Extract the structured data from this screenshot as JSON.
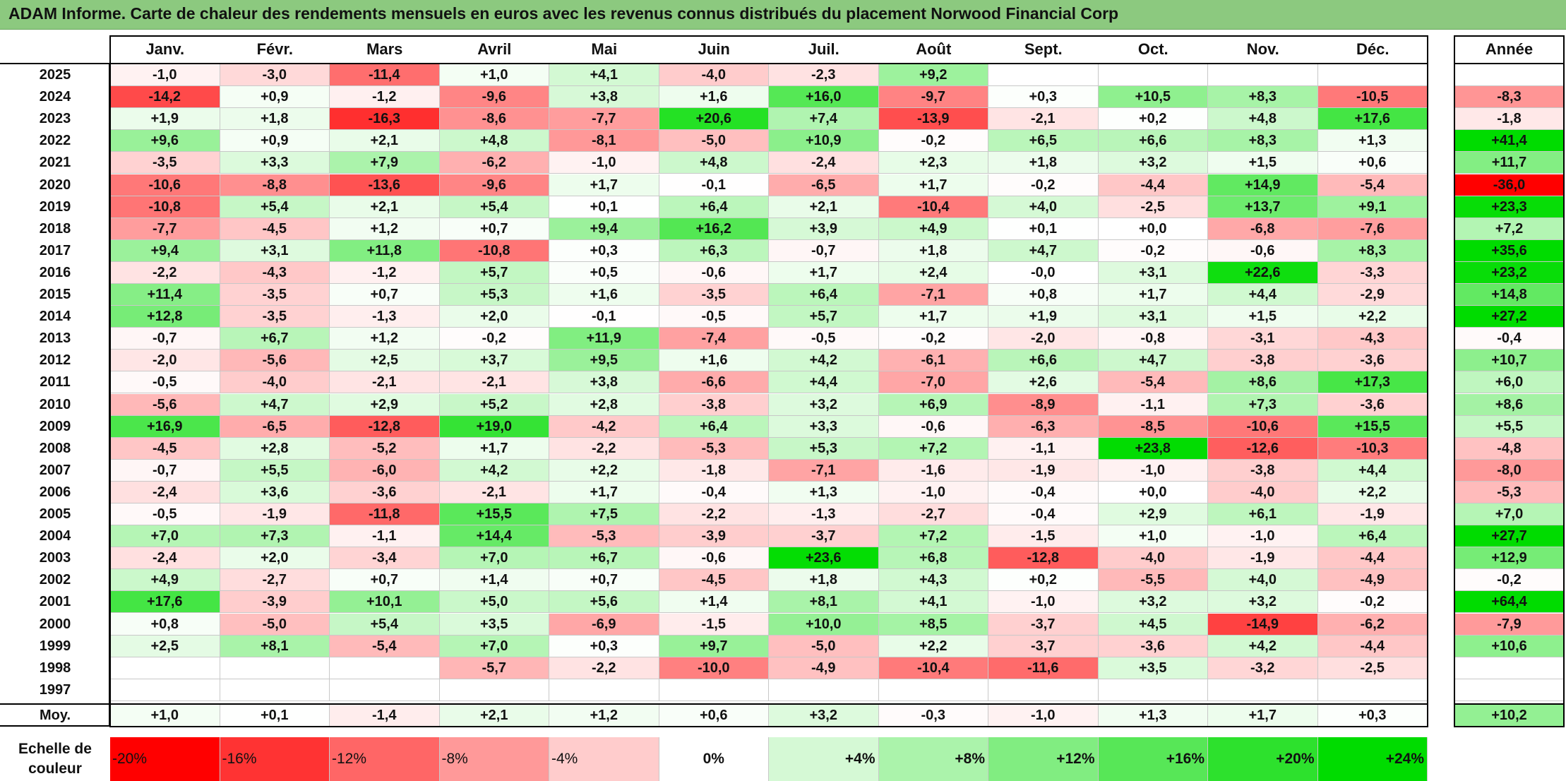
{
  "title": "ADAM Informe. Carte de chaleur des rendements mensuels en euros avec les revenus connus distribués du placement Norwood Financial Corp",
  "chart_data": {
    "type": "heatmap",
    "months": [
      "Janv.",
      "Févr.",
      "Mars",
      "Avril",
      "Mai",
      "Juin",
      "Juil.",
      "Août",
      "Sept.",
      "Oct.",
      "Nov.",
      "Déc."
    ],
    "year_header": "Année",
    "rows": [
      {
        "year": "2025",
        "values": [
          "-1,0",
          "-3,0",
          "-11,4",
          "+1,0",
          "+4,1",
          "-4,0",
          "-2,3",
          "+9,2",
          "",
          "",
          "",
          ""
        ],
        "annual": ""
      },
      {
        "year": "2024",
        "values": [
          "-14,2",
          "+0,9",
          "-1,2",
          "-9,6",
          "+3,8",
          "+1,6",
          "+16,0",
          "-9,7",
          "+0,3",
          "+10,5",
          "+8,3",
          "-10,5"
        ],
        "annual": "-8,3"
      },
      {
        "year": "2023",
        "values": [
          "+1,9",
          "+1,8",
          "-16,3",
          "-8,6",
          "-7,7",
          "+20,6",
          "+7,4",
          "-13,9",
          "-2,1",
          "+0,2",
          "+4,8",
          "+17,6"
        ],
        "annual": "-1,8"
      },
      {
        "year": "2022",
        "values": [
          "+9,6",
          "+0,9",
          "+2,1",
          "+4,8",
          "-8,1",
          "-5,0",
          "+10,9",
          "-0,2",
          "+6,5",
          "+6,6",
          "+8,3",
          "+1,3"
        ],
        "annual": "+41,4"
      },
      {
        "year": "2021",
        "values": [
          "-3,5",
          "+3,3",
          "+7,9",
          "-6,2",
          "-1,0",
          "+4,8",
          "-2,4",
          "+2,3",
          "+1,8",
          "+3,2",
          "+1,5",
          "+0,6"
        ],
        "annual": "+11,7"
      },
      {
        "year": "2020",
        "values": [
          "-10,6",
          "-8,8",
          "-13,6",
          "-9,6",
          "+1,7",
          "-0,1",
          "-6,5",
          "+1,7",
          "-0,2",
          "-4,4",
          "+14,9",
          "-5,4"
        ],
        "annual": "-36,0"
      },
      {
        "year": "2019",
        "values": [
          "-10,8",
          "+5,4",
          "+2,1",
          "+5,4",
          "+0,1",
          "+6,4",
          "+2,1",
          "-10,4",
          "+4,0",
          "-2,5",
          "+13,7",
          "+9,1"
        ],
        "annual": "+23,3"
      },
      {
        "year": "2018",
        "values": [
          "-7,7",
          "-4,5",
          "+1,2",
          "+0,7",
          "+9,4",
          "+16,2",
          "+3,9",
          "+4,9",
          "+0,1",
          "+0,0",
          "-6,8",
          "-7,6"
        ],
        "annual": "+7,2"
      },
      {
        "year": "2017",
        "values": [
          "+9,4",
          "+3,1",
          "+11,8",
          "-10,8",
          "+0,3",
          "+6,3",
          "-0,7",
          "+1,8",
          "+4,7",
          "-0,2",
          "-0,6",
          "+8,3"
        ],
        "annual": "+35,6"
      },
      {
        "year": "2016",
        "values": [
          "-2,2",
          "-4,3",
          "-1,2",
          "+5,7",
          "+0,5",
          "-0,6",
          "+1,7",
          "+2,4",
          "-0,0",
          "+3,1",
          "+22,6",
          "-3,3"
        ],
        "annual": "+23,2"
      },
      {
        "year": "2015",
        "values": [
          "+11,4",
          "-3,5",
          "+0,7",
          "+5,3",
          "+1,6",
          "-3,5",
          "+6,4",
          "-7,1",
          "+0,8",
          "+1,7",
          "+4,4",
          "-2,9"
        ],
        "annual": "+14,8"
      },
      {
        "year": "2014",
        "values": [
          "+12,8",
          "-3,5",
          "-1,3",
          "+2,0",
          "-0,1",
          "-0,5",
          "+5,7",
          "+1,7",
          "+1,9",
          "+3,1",
          "+1,5",
          "+2,2"
        ],
        "annual": "+27,2"
      },
      {
        "year": "2013",
        "values": [
          "-0,7",
          "+6,7",
          "+1,2",
          "-0,2",
          "+11,9",
          "-7,4",
          "-0,5",
          "-0,2",
          "-2,0",
          "-0,8",
          "-3,1",
          "-4,3"
        ],
        "annual": "-0,4"
      },
      {
        "year": "2012",
        "values": [
          "-2,0",
          "-5,6",
          "+2,5",
          "+3,7",
          "+9,5",
          "+1,6",
          "+4,2",
          "-6,1",
          "+6,6",
          "+4,7",
          "-3,8",
          "-3,6"
        ],
        "annual": "+10,7"
      },
      {
        "year": "2011",
        "values": [
          "-0,5",
          "-4,0",
          "-2,1",
          "-2,1",
          "+3,8",
          "-6,6",
          "+4,4",
          "-7,0",
          "+2,6",
          "-5,4",
          "+8,6",
          "+17,3"
        ],
        "annual": "+6,0"
      },
      {
        "year": "2010",
        "values": [
          "-5,6",
          "+4,7",
          "+2,9",
          "+5,2",
          "+2,8",
          "-3,8",
          "+3,2",
          "+6,9",
          "-8,9",
          "-1,1",
          "+7,3",
          "-3,6"
        ],
        "annual": "+8,6"
      },
      {
        "year": "2009",
        "values": [
          "+16,9",
          "-6,5",
          "-12,8",
          "+19,0",
          "-4,2",
          "+6,4",
          "+3,3",
          "-0,6",
          "-6,3",
          "-8,5",
          "-10,6",
          "+15,5"
        ],
        "annual": "+5,5"
      },
      {
        "year": "2008",
        "values": [
          "-4,5",
          "+2,8",
          "-5,2",
          "+1,7",
          "-2,2",
          "-5,3",
          "+5,3",
          "+7,2",
          "-1,1",
          "+23,8",
          "-12,6",
          "-10,3"
        ],
        "annual": "-4,8"
      },
      {
        "year": "2007",
        "values": [
          "-0,7",
          "+5,5",
          "-6,0",
          "+4,2",
          "+2,2",
          "-1,8",
          "-7,1",
          "-1,6",
          "-1,9",
          "-1,0",
          "-3,8",
          "+4,4"
        ],
        "annual": "-8,0"
      },
      {
        "year": "2006",
        "values": [
          "-2,4",
          "+3,6",
          "-3,6",
          "-2,1",
          "+1,7",
          "-0,4",
          "+1,3",
          "-1,0",
          "-0,4",
          "+0,0",
          "-4,0",
          "+2,2"
        ],
        "annual": "-5,3"
      },
      {
        "year": "2005",
        "values": [
          "-0,5",
          "-1,9",
          "-11,8",
          "+15,5",
          "+7,5",
          "-2,2",
          "-1,3",
          "-2,7",
          "-0,4",
          "+2,9",
          "+6,1",
          "-1,9"
        ],
        "annual": "+7,0"
      },
      {
        "year": "2004",
        "values": [
          "+7,0",
          "+7,3",
          "-1,1",
          "+14,4",
          "-5,3",
          "-3,9",
          "-3,7",
          "+7,2",
          "-1,5",
          "+1,0",
          "-1,0",
          "+6,4"
        ],
        "annual": "+27,7"
      },
      {
        "year": "2003",
        "values": [
          "-2,4",
          "+2,0",
          "-3,4",
          "+7,0",
          "+6,7",
          "-0,6",
          "+23,6",
          "+6,8",
          "-12,8",
          "-4,0",
          "-1,9",
          "-4,4"
        ],
        "annual": "+12,9"
      },
      {
        "year": "2002",
        "values": [
          "+4,9",
          "-2,7",
          "+0,7",
          "+1,4",
          "+0,7",
          "-4,5",
          "+1,8",
          "+4,3",
          "+0,2",
          "-5,5",
          "+4,0",
          "-4,9"
        ],
        "annual": "-0,2"
      },
      {
        "year": "2001",
        "values": [
          "+17,6",
          "-3,9",
          "+10,1",
          "+5,0",
          "+5,6",
          "+1,4",
          "+8,1",
          "+4,1",
          "-1,0",
          "+3,2",
          "+3,2",
          "-0,2"
        ],
        "annual": "+64,4"
      },
      {
        "year": "2000",
        "values": [
          "+0,8",
          "-5,0",
          "+5,4",
          "+3,5",
          "-6,9",
          "-1,5",
          "+10,0",
          "+8,5",
          "-3,7",
          "+4,5",
          "-14,9",
          "-6,2"
        ],
        "annual": "-7,9"
      },
      {
        "year": "1999",
        "values": [
          "+2,5",
          "+8,1",
          "-5,4",
          "+7,0",
          "+0,3",
          "+9,7",
          "-5,0",
          "+2,2",
          "-3,7",
          "-3,6",
          "+4,2",
          "-4,4"
        ],
        "annual": "+10,6"
      },
      {
        "year": "1998",
        "values": [
          "",
          "",
          "",
          "-5,7",
          "-2,2",
          "-10,0",
          "-4,9",
          "-10,4",
          "-11,6",
          "+3,5",
          "-3,2",
          "-2,5"
        ],
        "annual": ""
      },
      {
        "year": "1997",
        "values": [
          "",
          "",
          "",
          "",
          "",
          "",
          "",
          "",
          "",
          "",
          "",
          ""
        ],
        "annual": ""
      }
    ],
    "average": {
      "label": "Moy.",
      "values": [
        "+1,0",
        "+0,1",
        "-1,4",
        "+2,1",
        "+1,2",
        "+0,6",
        "+3,2",
        "-0,3",
        "-1,0",
        "+1,3",
        "+1,7",
        "+0,3"
      ],
      "annual": "+10,2"
    },
    "legend": {
      "title_line1": "Echelle de",
      "title_line2": "couleur",
      "items": [
        {
          "label": "-20%",
          "value": -20,
          "color": "#ff0000"
        },
        {
          "label": "-16%",
          "value": -16,
          "color": "#ff3333"
        },
        {
          "label": "-12%",
          "value": -12,
          "color": "#ff6666"
        },
        {
          "label": "-8%",
          "value": -8,
          "color": "#ff9999"
        },
        {
          "label": "-4%",
          "value": -4,
          "color": "#ffcccc"
        },
        {
          "label": "0%",
          "value": 0,
          "color": "#ffffff"
        },
        {
          "label": "+4%",
          "value": 4,
          "color": "#d5f9d5"
        },
        {
          "label": "+8%",
          "value": 8,
          "color": "#abf3ab"
        },
        {
          "label": "+12%",
          "value": 12,
          "color": "#81ed81"
        },
        {
          "label": "+16%",
          "value": 16,
          "color": "#57e757"
        },
        {
          "label": "+20%",
          "value": 20,
          "color": "#2de12d"
        },
        {
          "label": "+24%",
          "value": 24,
          "color": "#00dc00"
        }
      ]
    }
  }
}
